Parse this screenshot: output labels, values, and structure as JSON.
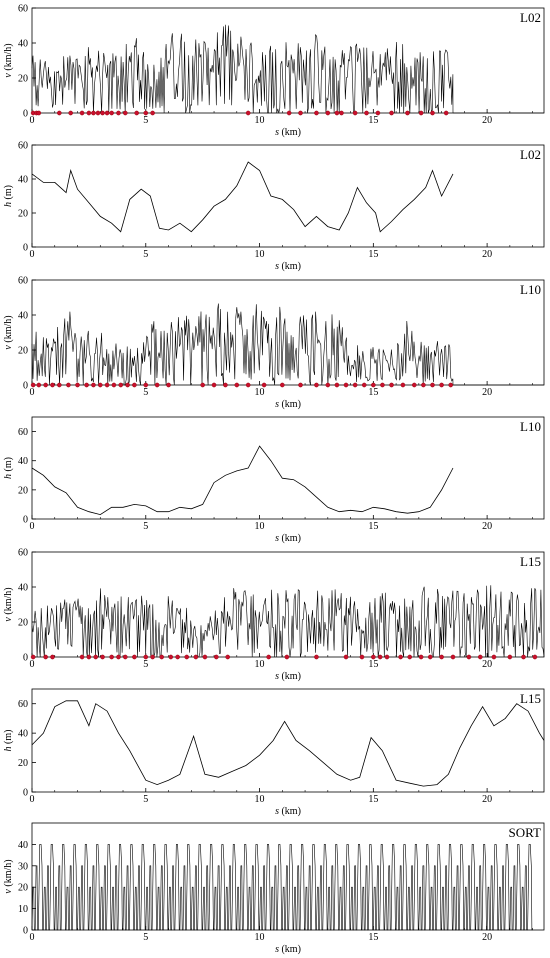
{
  "chart_data": [
    {
      "type": "line",
      "panel_label": "L02",
      "xlabel_var": "s",
      "xlabel_unit": " (km)",
      "ylabel_var": "v",
      "ylabel_unit": " (km/h)",
      "xlim": [
        0,
        22.5
      ],
      "ylim": [
        0,
        60
      ],
      "xticks": [
        0,
        5,
        10,
        15,
        20
      ],
      "yticks": [
        0,
        20,
        40,
        60
      ],
      "extent_km": 18.5,
      "envelope": {
        "x": [
          0,
          0.5,
          1,
          1.5,
          2,
          2.5,
          3,
          3.5,
          4,
          4.5,
          5,
          5.5,
          6,
          6.5,
          7,
          7.5,
          8,
          8.5,
          9,
          9.5,
          10,
          10.5,
          11,
          11.5,
          12,
          12.5,
          13,
          13.5,
          14,
          14.5,
          15,
          15.5,
          16,
          16.5,
          17,
          17.5,
          18,
          18.5
        ],
        "y": [
          33,
          32,
          34,
          36,
          39,
          38,
          37,
          36,
          38,
          44,
          40,
          32,
          46,
          48,
          45,
          44,
          44,
          52,
          47,
          44,
          47,
          48,
          44,
          42,
          42,
          45,
          43,
          38,
          44,
          40,
          36,
          40,
          42,
          40,
          38,
          38,
          40,
          30
        ]
      },
      "stops_km": [
        0.05,
        0.2,
        0.3,
        1.2,
        1.7,
        2.2,
        2.5,
        2.7,
        2.9,
        3.1,
        3.3,
        3.5,
        3.8,
        4.1,
        4.6,
        5.0,
        5.3,
        9.5,
        11.3,
        11.8,
        12.5,
        13.0,
        13.4,
        13.6,
        14.2,
        14.7,
        15.2,
        15.8,
        16.5,
        17.1,
        17.6,
        18.2
      ]
    },
    {
      "type": "line",
      "panel_label": "L02",
      "xlabel_var": "s",
      "xlabel_unit": " (km)",
      "ylabel_var": "h",
      "ylabel_unit": " (m)",
      "xlim": [
        0,
        22.5
      ],
      "ylim": [
        0,
        60
      ],
      "xticks": [
        0,
        5,
        10,
        15,
        20
      ],
      "yticks": [
        0,
        20,
        40,
        60
      ],
      "x": [
        0,
        0.5,
        1,
        1.5,
        1.7,
        2,
        2.5,
        3,
        3.5,
        3.9,
        4.3,
        4.8,
        5.2,
        5.6,
        6,
        6.5,
        7,
        7.5,
        8,
        8.5,
        9,
        9.5,
        10,
        10.5,
        11,
        11.5,
        12,
        12.5,
        13,
        13.5,
        13.9,
        14.3,
        14.7,
        15.1,
        15.3,
        15.8,
        16.3,
        16.8,
        17.3,
        17.6,
        18,
        18.5
      ],
      "y": [
        43,
        38,
        38,
        32,
        45,
        34,
        26,
        18,
        14,
        9,
        28,
        34,
        30,
        11,
        10,
        14,
        9,
        16,
        24,
        28,
        36,
        50,
        45,
        30,
        28,
        22,
        12,
        18,
        12,
        10,
        20,
        35,
        26,
        20,
        9,
        15,
        22,
        28,
        35,
        45,
        30,
        43
      ]
    },
    {
      "type": "line",
      "panel_label": "L10",
      "xlabel_var": "s",
      "xlabel_unit": " (km)",
      "ylabel_var": "v",
      "ylabel_unit": " (km/h)",
      "xlim": [
        0,
        22.5
      ],
      "ylim": [
        0,
        60
      ],
      "xticks": [
        0,
        5,
        10,
        15,
        20
      ],
      "yticks": [
        0,
        20,
        40,
        60
      ],
      "extent_km": 18.5,
      "envelope": {
        "x": [
          0,
          0.5,
          1,
          1.5,
          2,
          2.5,
          3,
          3.5,
          4,
          4.5,
          5,
          5.5,
          6,
          6.5,
          7,
          7.5,
          8,
          8.5,
          9,
          9.5,
          10,
          10.5,
          11,
          11.5,
          12,
          12.5,
          13,
          13.5,
          14,
          14.5,
          15,
          15.5,
          16,
          16.5,
          17,
          17.5,
          18,
          18.5
        ],
        "y": [
          31,
          30,
          28,
          49,
          28,
          32,
          33,
          26,
          22,
          25,
          28,
          42,
          45,
          40,
          42,
          47,
          48,
          46,
          48,
          46,
          47,
          44,
          45,
          44,
          42,
          44,
          42,
          40,
          26,
          24,
          22,
          20,
          22,
          40,
          26,
          22,
          30,
          24
        ]
      },
      "stops_km": [
        0.05,
        0.3,
        0.6,
        0.9,
        1.2,
        1.6,
        2.0,
        2.4,
        2.7,
        3.0,
        3.3,
        3.6,
        3.9,
        4.2,
        4.5,
        5.0,
        5.5,
        6.0,
        7.5,
        8.0,
        8.5,
        9.0,
        9.5,
        10.2,
        11.0,
        11.8,
        12.5,
        13.0,
        13.4,
        13.8,
        14.2,
        14.6,
        15.0,
        15.4,
        15.8,
        16.3,
        16.8,
        17.2,
        17.6,
        18.0,
        18.4
      ]
    },
    {
      "type": "line",
      "panel_label": "L10",
      "xlabel_var": "s",
      "xlabel_unit": " (km)",
      "ylabel_var": "h",
      "ylabel_unit": " (m)",
      "xlim": [
        0,
        22.5
      ],
      "ylim": [
        0,
        70
      ],
      "xticks": [
        0,
        5,
        10,
        15,
        20
      ],
      "yticks": [
        0,
        20,
        40,
        60
      ],
      "x": [
        0,
        0.5,
        1,
        1.5,
        2,
        2.5,
        3,
        3.5,
        4,
        4.5,
        5,
        5.5,
        6,
        6.5,
        7,
        7.5,
        8,
        8.5,
        9,
        9.5,
        10,
        10.5,
        11,
        11.5,
        12,
        12.5,
        13,
        13.5,
        14,
        14.5,
        15,
        15.5,
        16,
        16.5,
        17,
        17.5,
        18,
        18.5
      ],
      "y": [
        35,
        30,
        22,
        18,
        8,
        5,
        3,
        8,
        8,
        10,
        9,
        5,
        5,
        8,
        7,
        10,
        25,
        30,
        33,
        35,
        50,
        40,
        28,
        27,
        22,
        15,
        8,
        5,
        6,
        5,
        8,
        7,
        5,
        4,
        5,
        8,
        20,
        35
      ]
    },
    {
      "type": "line",
      "panel_label": "L15",
      "xlabel_var": "s",
      "xlabel_unit": " (km)",
      "ylabel_var": "v",
      "ylabel_unit": " (km/h)",
      "xlim": [
        0,
        22.5
      ],
      "ylim": [
        0,
        60
      ],
      "xticks": [
        0,
        5,
        10,
        15,
        20
      ],
      "yticks": [
        0,
        20,
        40,
        60
      ],
      "extent_km": 22.5,
      "envelope": {
        "x": [
          0,
          0.5,
          1,
          1.5,
          2,
          2.5,
          3,
          3.5,
          4,
          4.5,
          5,
          5.5,
          6,
          6.5,
          7,
          7.5,
          8,
          8.5,
          9,
          9.5,
          10,
          10.5,
          11,
          11.5,
          12,
          12.5,
          13,
          13.5,
          14,
          14.5,
          15,
          15.5,
          16,
          16.5,
          17,
          17.5,
          18,
          18.5,
          19,
          19.5,
          20,
          20.5,
          21,
          21.5,
          22,
          22.5
        ],
        "y": [
          30,
          34,
          33,
          40,
          40,
          38,
          40,
          36,
          35,
          38,
          36,
          35,
          35,
          30,
          28,
          24,
          26,
          40,
          42,
          42,
          40,
          40,
          43,
          39,
          43,
          42,
          38,
          40,
          35,
          38,
          40,
          38,
          36,
          40,
          40,
          41,
          38,
          40,
          37,
          40,
          44,
          38,
          40,
          38,
          40,
          38
        ]
      },
      "stops_km": [
        0.05,
        0.6,
        0.9,
        2.2,
        2.5,
        2.8,
        3.1,
        3.5,
        3.8,
        4.1,
        4.5,
        5.0,
        5.3,
        5.7,
        6.1,
        6.4,
        6.8,
        7.2,
        7.6,
        8.1,
        8.6,
        10.4,
        11.2,
        12.5,
        13.8,
        14.5,
        15.0,
        15.3,
        15.6,
        16.2,
        16.6,
        17.1,
        17.5,
        18.0,
        18.5,
        19.2,
        19.7,
        20.3,
        21.0,
        21.6,
        22.1
      ]
    },
    {
      "type": "line",
      "panel_label": "L15",
      "xlabel_var": "s",
      "xlabel_unit": " (km)",
      "ylabel_var": "h",
      "ylabel_unit": " (m)",
      "xlim": [
        0,
        22.5
      ],
      "ylim": [
        0,
        70
      ],
      "xticks": [
        0,
        5,
        10,
        15,
        20
      ],
      "yticks": [
        0,
        20,
        40,
        60
      ],
      "x": [
        0,
        0.5,
        1,
        1.5,
        2,
        2.5,
        2.8,
        3.3,
        3.8,
        4.3,
        5,
        5.5,
        6,
        6.5,
        7.1,
        7.6,
        8.2,
        8.8,
        9.4,
        10,
        10.6,
        11.1,
        11.6,
        12.2,
        12.8,
        13.4,
        14,
        14.4,
        14.9,
        15.4,
        16,
        16.6,
        17.2,
        17.8,
        18.3,
        18.8,
        19.3,
        19.8,
        20.3,
        20.8,
        21.3,
        21.8,
        22.3,
        22.5
      ],
      "y": [
        32,
        40,
        58,
        62,
        62,
        45,
        60,
        55,
        40,
        28,
        8,
        5,
        8,
        12,
        38,
        12,
        10,
        14,
        18,
        25,
        35,
        48,
        35,
        28,
        20,
        12,
        8,
        10,
        37,
        28,
        8,
        6,
        4,
        5,
        12,
        30,
        45,
        58,
        45,
        50,
        60,
        55,
        40,
        35
      ]
    },
    {
      "type": "line",
      "panel_label": "SORT",
      "xlabel_var": "s",
      "xlabel_unit": " (km)",
      "ylabel_var": "v",
      "ylabel_unit": " (km/h)",
      "xlim": [
        0,
        22.5
      ],
      "ylim": [
        0,
        50
      ],
      "xticks": [
        0,
        5,
        10,
        15,
        20
      ],
      "yticks": [
        0,
        10,
        20,
        30,
        40
      ],
      "cycle_km": 0.5,
      "cycle_count": 44,
      "levels_kmh": [
        40,
        30,
        20
      ]
    }
  ]
}
